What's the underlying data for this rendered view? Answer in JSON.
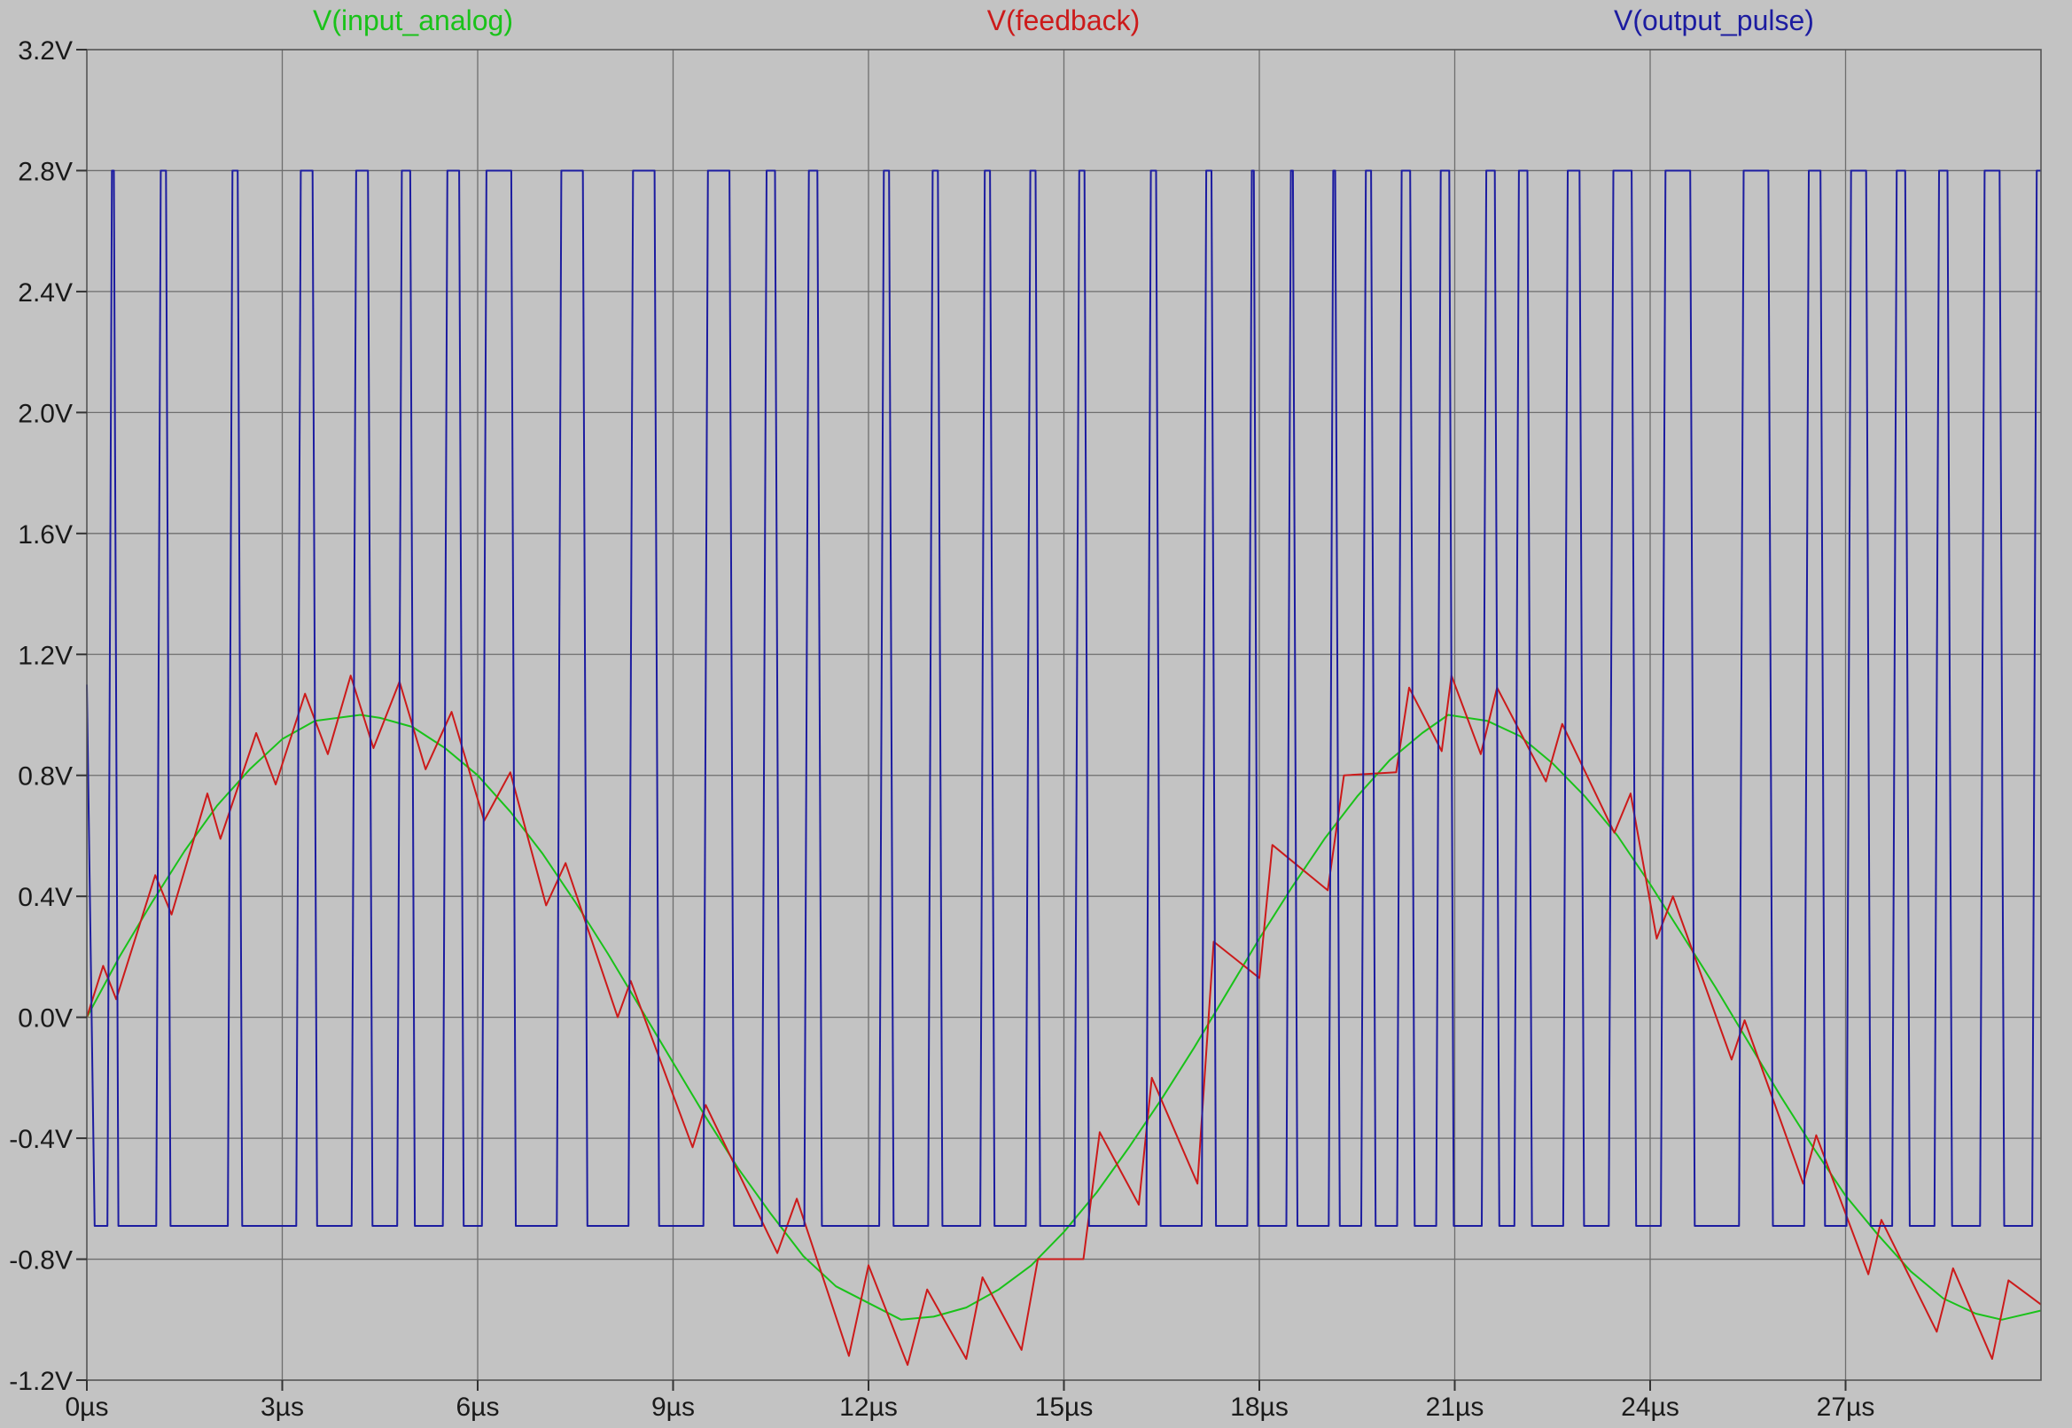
{
  "chart_data": {
    "type": "line",
    "title": "",
    "xlabel": "",
    "ylabel": "",
    "xlim": [
      0,
      30
    ],
    "ylim": [
      -1.2,
      3.2
    ],
    "x_unit": "µs",
    "y_unit": "V",
    "grid": true,
    "legend_position": "top",
    "background_color": "#c3c3c3",
    "x_ticks": [
      0,
      3,
      6,
      9,
      12,
      15,
      18,
      21,
      24,
      27
    ],
    "x_tick_labels": [
      "0µs",
      "3µs",
      "6µs",
      "9µs",
      "12µs",
      "15µs",
      "18µs",
      "21µs",
      "24µs",
      "27µs"
    ],
    "y_ticks": [
      3.2,
      2.8,
      2.4,
      2.0,
      1.6,
      1.2,
      0.8,
      0.4,
      0.0,
      -0.4,
      -0.8,
      -1.2
    ],
    "y_tick_labels": [
      "3.2V",
      "2.8V",
      "2.4V",
      "2.0V",
      "1.6V",
      "1.2V",
      "0.8V",
      "0.4V",
      "0.0V",
      "-0.4V",
      "-0.8V",
      "-1.2V"
    ],
    "series": [
      {
        "name": "V(input_analog)",
        "color": "#19c219",
        "x": [
          0,
          0.5,
          1,
          1.5,
          2,
          2.5,
          3,
          3.5,
          4.2,
          4.5,
          5,
          5.5,
          6,
          6.5,
          7,
          7.5,
          8,
          8.5,
          9,
          9.5,
          10,
          10.5,
          11,
          11.5,
          12.5,
          13,
          13.5,
          14,
          14.5,
          15,
          15.5,
          16,
          16.5,
          17,
          17.5,
          18,
          18.5,
          19,
          19.5,
          20,
          20.5,
          20.9,
          21.5,
          22,
          22.5,
          23,
          23.5,
          24,
          24.5,
          25,
          25.5,
          26,
          26.5,
          27,
          27.5,
          28,
          28.5,
          29,
          29.4,
          30
        ],
        "values": [
          0.0,
          0.2,
          0.38,
          0.55,
          0.7,
          0.82,
          0.92,
          0.98,
          1.0,
          0.99,
          0.96,
          0.89,
          0.8,
          0.68,
          0.54,
          0.38,
          0.21,
          0.03,
          -0.15,
          -0.33,
          -0.5,
          -0.65,
          -0.79,
          -0.89,
          -1.0,
          -0.99,
          -0.96,
          -0.9,
          -0.82,
          -0.71,
          -0.58,
          -0.43,
          -0.27,
          -0.1,
          0.08,
          0.26,
          0.43,
          0.59,
          0.73,
          0.85,
          0.94,
          1.0,
          0.98,
          0.93,
          0.84,
          0.73,
          0.6,
          0.44,
          0.27,
          0.1,
          -0.08,
          -0.26,
          -0.43,
          -0.59,
          -0.72,
          -0.84,
          -0.93,
          -0.98,
          -1.0,
          -0.97
        ]
      },
      {
        "name": "V(feedback)",
        "color": "#cc1a1a",
        "x": [
          0,
          0.25,
          0.45,
          1.05,
          1.3,
          1.85,
          2.05,
          2.6,
          2.9,
          3.35,
          3.7,
          4.05,
          4.4,
          4.8,
          5.2,
          5.6,
          6.1,
          6.5,
          7.05,
          7.35,
          8.15,
          8.35,
          9.3,
          9.5,
          10.6,
          10.9,
          11.7,
          12,
          12.6,
          12.9,
          13.5,
          13.75,
          14.35,
          14.6,
          15.3,
          15.55,
          16.15,
          16.35,
          17.05,
          17.3,
          18,
          18.2,
          19.05,
          19.3,
          20.1,
          20.3,
          20.8,
          20.95,
          21.4,
          21.65,
          22.4,
          22.65,
          23.45,
          23.7,
          24.1,
          24.35,
          25.25,
          25.45,
          26.35,
          26.55,
          27.35,
          27.55,
          28.4,
          28.65,
          29.25,
          29.5,
          30
        ],
        "values": [
          0.0,
          0.17,
          0.06,
          0.47,
          0.34,
          0.74,
          0.59,
          0.94,
          0.77,
          1.07,
          0.87,
          1.13,
          0.89,
          1.11,
          0.82,
          1.01,
          0.65,
          0.81,
          0.37,
          0.51,
          0.0,
          0.12,
          -0.43,
          -0.29,
          -0.78,
          -0.6,
          -1.12,
          -0.82,
          -1.15,
          -0.9,
          -1.13,
          -0.86,
          -1.1,
          -0.8,
          -0.8,
          -0.38,
          -0.62,
          -0.2,
          -0.55,
          0.25,
          0.13,
          0.57,
          0.42,
          0.8,
          0.81,
          1.09,
          0.88,
          1.13,
          0.87,
          1.09,
          0.78,
          0.97,
          0.61,
          0.74,
          0.26,
          0.4,
          -0.14,
          -0.01,
          -0.55,
          -0.39,
          -0.85,
          -0.67,
          -1.04,
          -0.83,
          -1.13,
          -0.87,
          -0.95
        ]
      },
      {
        "name": "V(output_pulse)",
        "color": "#1c1ca0",
        "high": 2.8,
        "low": -0.69,
        "start_value": 1.1,
        "start_low_time": 0.12,
        "rise_times_us": [
          0.35,
          1.1,
          2.2,
          3.25,
          4.1,
          4.8,
          5.5,
          6.1,
          7.25,
          8.35,
          9.5,
          10.4,
          11.05,
          12.2,
          12.95,
          13.75,
          14.45,
          15.2,
          16.3,
          17.15,
          17.85,
          18.45,
          19.1,
          19.6,
          20.15,
          20.75,
          21.45,
          21.95,
          22.7,
          23.4,
          24.2,
          25.4,
          26.4,
          27.05,
          27.75,
          28.4,
          29.1,
          29.9
        ],
        "fall_times_us": [
          0.45,
          1.25,
          2.35,
          3.5,
          4.35,
          5.0,
          5.75,
          6.55,
          7.65,
          8.75,
          9.9,
          10.6,
          11.25,
          12.35,
          13.1,
          13.9,
          14.6,
          15.35,
          16.45,
          17.3,
          17.95,
          18.55,
          19.2,
          19.75,
          20.35,
          20.95,
          21.65,
          22.15,
          22.95,
          23.75,
          24.65,
          25.85,
          26.65,
          27.35,
          27.95,
          28.6,
          29.4
        ]
      }
    ]
  }
}
